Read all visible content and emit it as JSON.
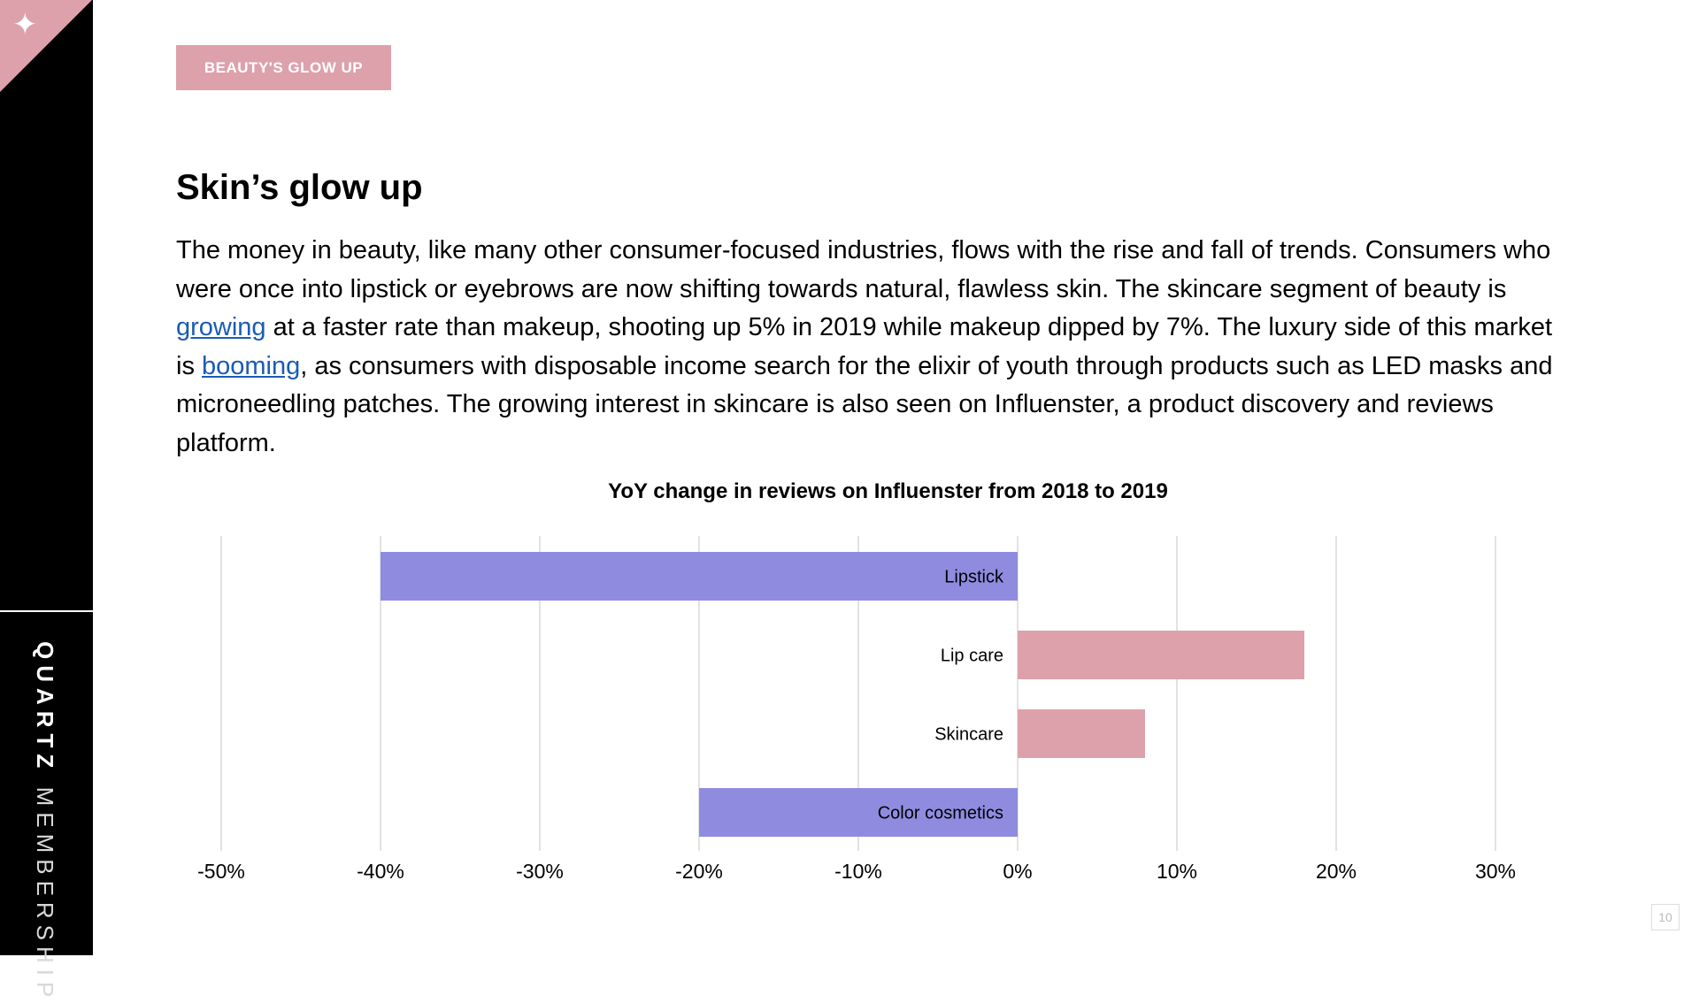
{
  "sidebar": {
    "brand_bold": "QUARTZ",
    "brand_light": "MEMBERSHIP",
    "corner_icon": "sparkle-icon",
    "corner_glyph": "✦",
    "accent_color": "#dda1ab"
  },
  "header": {
    "tag": "BEAUTY'S GLOW UP"
  },
  "main": {
    "title": "Skin’s glow up",
    "body_part1": "The money in beauty, like many other consumer-focused industries, flows with the rise and fall of trends. Consumers who were once into lipstick or eyebrows are now shifting towards natural, flawless skin. The skincare segment of beauty is ",
    "link1": "growing",
    "body_part2": " at a faster rate than makeup, shooting up 5% in 2019 while makeup dipped by 7%. The luxury side of this market is ",
    "link2": "booming",
    "body_part3": ", as consumers with disposable income search for the elixir of youth through products such as LED masks and microneedling patches. The growing interest in skincare is also seen on Influenster, a product discovery and reviews platform."
  },
  "chart_data": {
    "type": "bar",
    "orientation": "horizontal",
    "title": "YoY change in reviews on Influenster from 2018 to 2019",
    "categories": [
      "Lipstick",
      "Lip care",
      "Skincare",
      "Color cosmetics"
    ],
    "values": [
      -40,
      18,
      8,
      -20
    ],
    "xlim": [
      -50,
      30
    ],
    "xticks": [
      -50,
      -40,
      -30,
      -20,
      -10,
      0,
      10,
      20,
      30
    ],
    "xtick_labels": [
      "-50%",
      "-40%",
      "-30%",
      "-20%",
      "-10%",
      "0%",
      "10%",
      "20%",
      "30%"
    ],
    "grid": "vertical",
    "negative_color": "#8f8ce0",
    "positive_color": "#dda1ab"
  },
  "footer": {
    "page_number": "10"
  }
}
